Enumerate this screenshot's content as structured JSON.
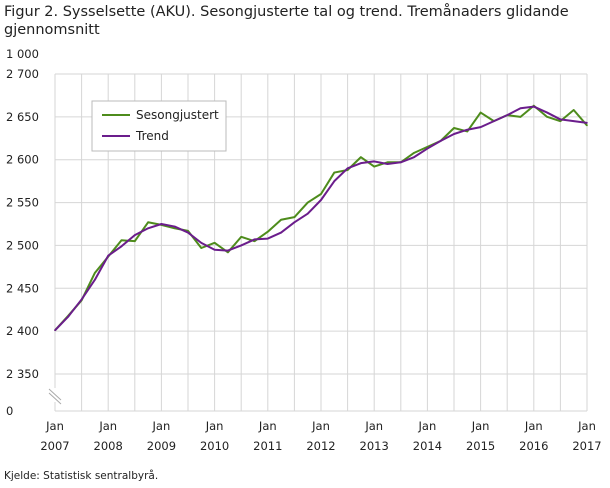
{
  "chart_data": {
    "type": "line",
    "title": "Figur 2. Sysselsette (AKU).  Sesongjusterte tal og trend. Tremånaders glidande gjennomsnitt",
    "unit_label": "1 000",
    "source": "Kjelde: Statistisk sentralbyrå.",
    "ylim": [
      2350,
      2700
    ],
    "y_axis_break": true,
    "yticks": [
      "0",
      "2 350",
      "2 400",
      "2 450",
      "2 500",
      "2 550",
      "2 600",
      "2 650",
      "2 700"
    ],
    "xticks": [
      [
        "Jan",
        "2007"
      ],
      [
        "Jan",
        "2008"
      ],
      [
        "Jan",
        "2009"
      ],
      [
        "Jan",
        "2010"
      ],
      [
        "Jan",
        "2011"
      ],
      [
        "Jan",
        "2012"
      ],
      [
        "Jan",
        "2013"
      ],
      [
        "Jan",
        "2014"
      ],
      [
        "Jan",
        "2015"
      ],
      [
        "Jan",
        "2016"
      ],
      [
        "Jan",
        "2017"
      ]
    ],
    "grid": true,
    "legend_placement": "top-left",
    "x": [
      "2007-01",
      "2007-04",
      "2007-07",
      "2007-10",
      "2008-01",
      "2008-04",
      "2008-07",
      "2008-10",
      "2009-01",
      "2009-04",
      "2009-07",
      "2009-10",
      "2010-01",
      "2010-04",
      "2010-07",
      "2010-10",
      "2011-01",
      "2011-04",
      "2011-07",
      "2011-10",
      "2012-01",
      "2012-04",
      "2012-07",
      "2012-10",
      "2013-01",
      "2013-04",
      "2013-07",
      "2013-10",
      "2014-01",
      "2014-04",
      "2014-07",
      "2014-10",
      "2015-01",
      "2015-04",
      "2015-07",
      "2015-10",
      "2016-01",
      "2016-04",
      "2016-07",
      "2016-10",
      "2017-01"
    ],
    "series": [
      {
        "name": "Sesongjustert",
        "color": "#4e8c1c",
        "values": [
          2401,
          2418,
          2436,
          2468,
          2487,
          2506,
          2505,
          2527,
          2524,
          2520,
          2517,
          2497,
          2503,
          2492,
          2510,
          2505,
          2516,
          2530,
          2533,
          2550,
          2560,
          2585,
          2588,
          2603,
          2592,
          2597,
          2597,
          2608,
          2615,
          2622,
          2637,
          2633,
          2655,
          2645,
          2652,
          2650,
          2663,
          2650,
          2645,
          2658,
          2640
        ]
      },
      {
        "name": "Trend",
        "color": "#6b1d8c",
        "values": [
          2401,
          2417,
          2437,
          2460,
          2488,
          2499,
          2512,
          2520,
          2525,
          2522,
          2515,
          2503,
          2495,
          2494,
          2500,
          2507,
          2508,
          2515,
          2527,
          2537,
          2553,
          2575,
          2590,
          2596,
          2598,
          2595,
          2597,
          2603,
          2613,
          2622,
          2630,
          2635,
          2638,
          2645,
          2652,
          2660,
          2662,
          2655,
          2647,
          2645,
          2643
        ]
      }
    ]
  }
}
